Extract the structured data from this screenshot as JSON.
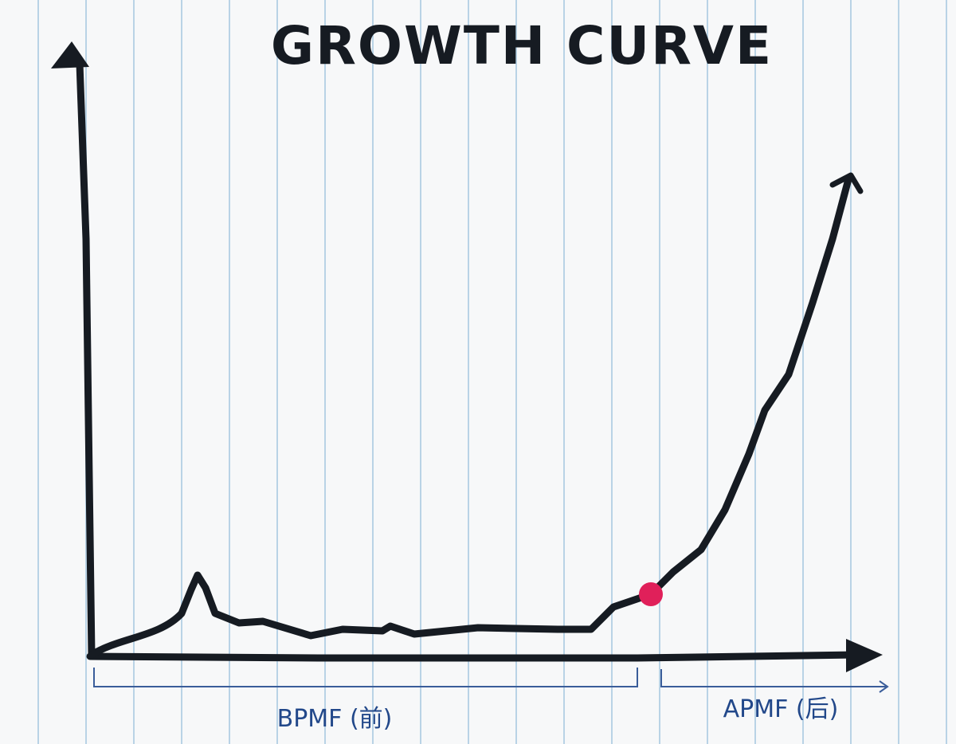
{
  "title": "GROWTH CURVE",
  "labels": {
    "before": "BPMF (前)",
    "after": "APMF (后)"
  }
}
